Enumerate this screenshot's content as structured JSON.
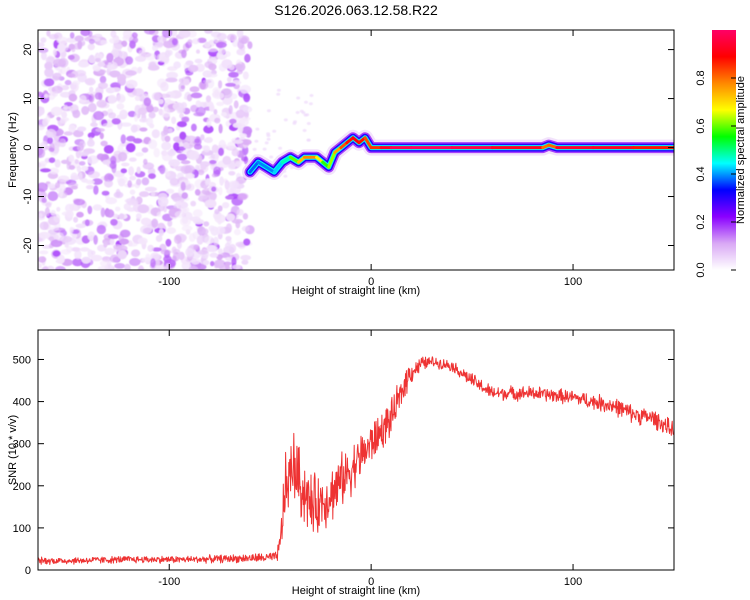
{
  "title": "S126.2026.063.12.58.R22",
  "chart_data": [
    {
      "type": "heatmap",
      "name": "spectrogram",
      "xlabel": "Height of straight line (km)",
      "ylabel": "Frequency (Hz)",
      "xlim": [
        -165,
        150
      ],
      "ylim": [
        -25,
        24
      ],
      "xticks": [
        -100,
        0,
        100
      ],
      "yticks": [
        -20,
        -10,
        0,
        10,
        20
      ],
      "colorbar": {
        "label": "Normalized spectral amplitude",
        "range": [
          0,
          1
        ],
        "ticks": [
          0.0,
          0.2,
          0.4,
          0.6,
          0.8
        ],
        "colors": [
          "#ffffff",
          "#d9a8f5",
          "#8a00ff",
          "#0000ff",
          "#00ffff",
          "#00ff00",
          "#ffff00",
          "#ff8800",
          "#ff0000",
          "#ff0066"
        ]
      },
      "noise_region": {
        "x": [
          -165,
          -60
        ],
        "amplitude": [
          0.03,
          0.18
        ]
      },
      "ridge": {
        "x": [
          -60,
          -56,
          -52,
          -48,
          -44,
          -40,
          -36,
          -33,
          -30,
          -27,
          -24,
          -21,
          -18,
          -15,
          -12,
          -9,
          -6,
          -3,
          0,
          5,
          10,
          20,
          40,
          60,
          85,
          88,
          92,
          110,
          130,
          150
        ],
        "frequency": [
          -5,
          -3,
          -4,
          -5,
          -3,
          -2,
          -3,
          -2,
          -2,
          -2,
          -3,
          -4,
          -1,
          0,
          1,
          2,
          1,
          2,
          0,
          0,
          0,
          0,
          0,
          0,
          0,
          0.5,
          0,
          0,
          0,
          0
        ],
        "amplitude": [
          0.35,
          0.4,
          0.38,
          0.4,
          0.45,
          0.5,
          0.7,
          0.75,
          0.8,
          0.75,
          0.6,
          0.55,
          0.7,
          0.8,
          0.85,
          0.9,
          0.9,
          0.85,
          0.8,
          0.9,
          0.95,
          1.0,
          0.98,
          0.95,
          0.9,
          0.7,
          0.92,
          0.95,
          0.9,
          0.85
        ]
      }
    },
    {
      "type": "line",
      "name": "snr",
      "xlabel": "Height of straight line (km)",
      "ylabel": "SNR (10 * v/v)",
      "xlim": [
        -165,
        150
      ],
      "ylim": [
        0,
        570
      ],
      "xticks": [
        -100,
        0,
        100
      ],
      "yticks": [
        0,
        100,
        200,
        300,
        400,
        500
      ],
      "color": "#ee3333",
      "series": [
        {
          "name": "SNR",
          "x": [
            -165,
            -150,
            -120,
            -90,
            -60,
            -47,
            -45,
            -43,
            -40,
            -38,
            -35,
            -32,
            -30,
            -25,
            -20,
            -15,
            -10,
            -5,
            0,
            5,
            10,
            15,
            18,
            20,
            25,
            30,
            35,
            40,
            50,
            60,
            80,
            100,
            110,
            120,
            130,
            140,
            150
          ],
          "mean": [
            22,
            22,
            25,
            25,
            28,
            30,
            60,
            180,
            230,
            250,
            200,
            180,
            150,
            160,
            180,
            210,
            240,
            270,
            300,
            330,
            360,
            420,
            460,
            470,
            490,
            495,
            490,
            485,
            450,
            420,
            420,
            410,
            400,
            390,
            370,
            360,
            330
          ],
          "jitter": [
            10,
            10,
            10,
            10,
            12,
            15,
            40,
            100,
            100,
            100,
            100,
            90,
            90,
            80,
            80,
            75,
            70,
            65,
            60,
            55,
            50,
            45,
            40,
            30,
            20,
            15,
            15,
            15,
            20,
            20,
            20,
            20,
            22,
            25,
            25,
            25,
            25
          ]
        }
      ]
    }
  ]
}
